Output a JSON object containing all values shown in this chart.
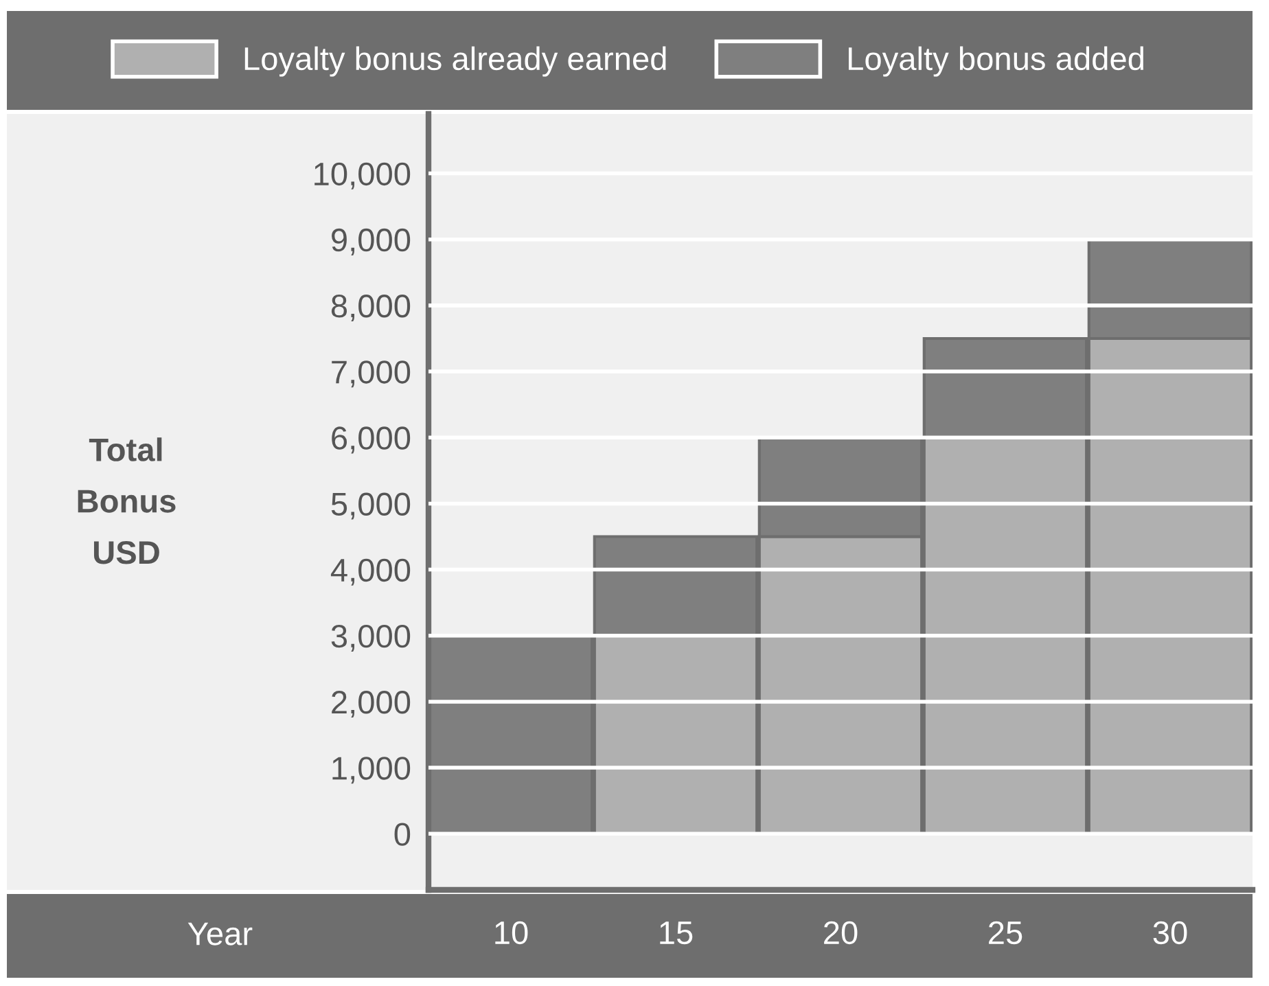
{
  "chart_data": {
    "type": "bar",
    "stacked": true,
    "categories": [
      "10",
      "15",
      "20",
      "25",
      "30"
    ],
    "xlabel": "Year",
    "ylabel": "Total\nBonus\nUSD",
    "series": [
      {
        "name": "Loyalty bonus already earned",
        "color": "#b0b0b0",
        "values": [
          0,
          3000,
          4500,
          6000,
          7500
        ]
      },
      {
        "name": "Loyalty bonus added",
        "color": "#7f7f7f",
        "values": [
          3000,
          1500,
          1500,
          1500,
          1500
        ]
      }
    ],
    "ylim": [
      -850,
      10900
    ],
    "yticks": [
      0,
      {
        "value": 1000,
        "label": "1,000"
      },
      {
        "value": 2000,
        "label": "2,000"
      },
      {
        "value": 3000,
        "label": "3,000"
      },
      {
        "value": 4000,
        "label": "4,000"
      },
      {
        "value": 5000,
        "label": "5,000"
      },
      {
        "value": 6000,
        "label": "6,000"
      },
      {
        "value": 7000,
        "label": "7,000"
      },
      {
        "value": 8000,
        "label": "8,000"
      },
      {
        "value": 9000,
        "label": "9,000"
      },
      {
        "value": 10000,
        "label": "10,000"
      }
    ],
    "grid": "y",
    "legend": "top"
  }
}
